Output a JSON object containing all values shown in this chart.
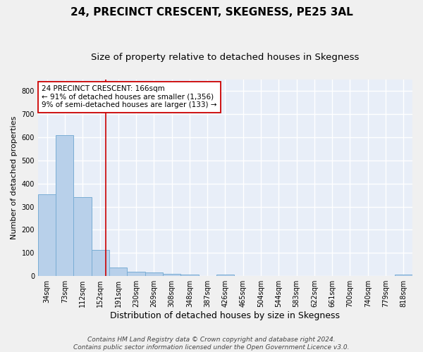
{
  "title": "24, PRECINCT CRESCENT, SKEGNESS, PE25 3AL",
  "subtitle": "Size of property relative to detached houses in Skegness",
  "xlabel": "Distribution of detached houses by size in Skegness",
  "ylabel": "Number of detached properties",
  "categories": [
    "34sqm",
    "73sqm",
    "112sqm",
    "152sqm",
    "191sqm",
    "230sqm",
    "269sqm",
    "308sqm",
    "348sqm",
    "387sqm",
    "426sqm",
    "465sqm",
    "504sqm",
    "544sqm",
    "583sqm",
    "622sqm",
    "661sqm",
    "700sqm",
    "740sqm",
    "779sqm",
    "818sqm"
  ],
  "values": [
    355,
    610,
    340,
    113,
    38,
    20,
    15,
    10,
    8,
    0,
    8,
    0,
    0,
    0,
    0,
    0,
    0,
    0,
    0,
    0,
    6
  ],
  "bar_color": "#b8d0ea",
  "bar_edge_color": "#7aadd4",
  "vline_color": "#cc0000",
  "annotation_text": "24 PRECINCT CRESCENT: 166sqm\n← 91% of detached houses are smaller (1,356)\n9% of semi-detached houses are larger (133) →",
  "annotation_box_color": "#ffffff",
  "annotation_box_edge": "#cc0000",
  "ylim": [
    0,
    850
  ],
  "yticks": [
    0,
    100,
    200,
    300,
    400,
    500,
    600,
    700,
    800
  ],
  "footer": "Contains HM Land Registry data © Crown copyright and database right 2024.\nContains public sector information licensed under the Open Government Licence v3.0.",
  "background_color": "#e8eef8",
  "fig_background": "#f0f0f0",
  "grid_color": "#ffffff",
  "title_fontsize": 11,
  "subtitle_fontsize": 9.5,
  "xlabel_fontsize": 9,
  "ylabel_fontsize": 8,
  "tick_fontsize": 7,
  "annotation_fontsize": 7.5,
  "footer_fontsize": 6.5
}
